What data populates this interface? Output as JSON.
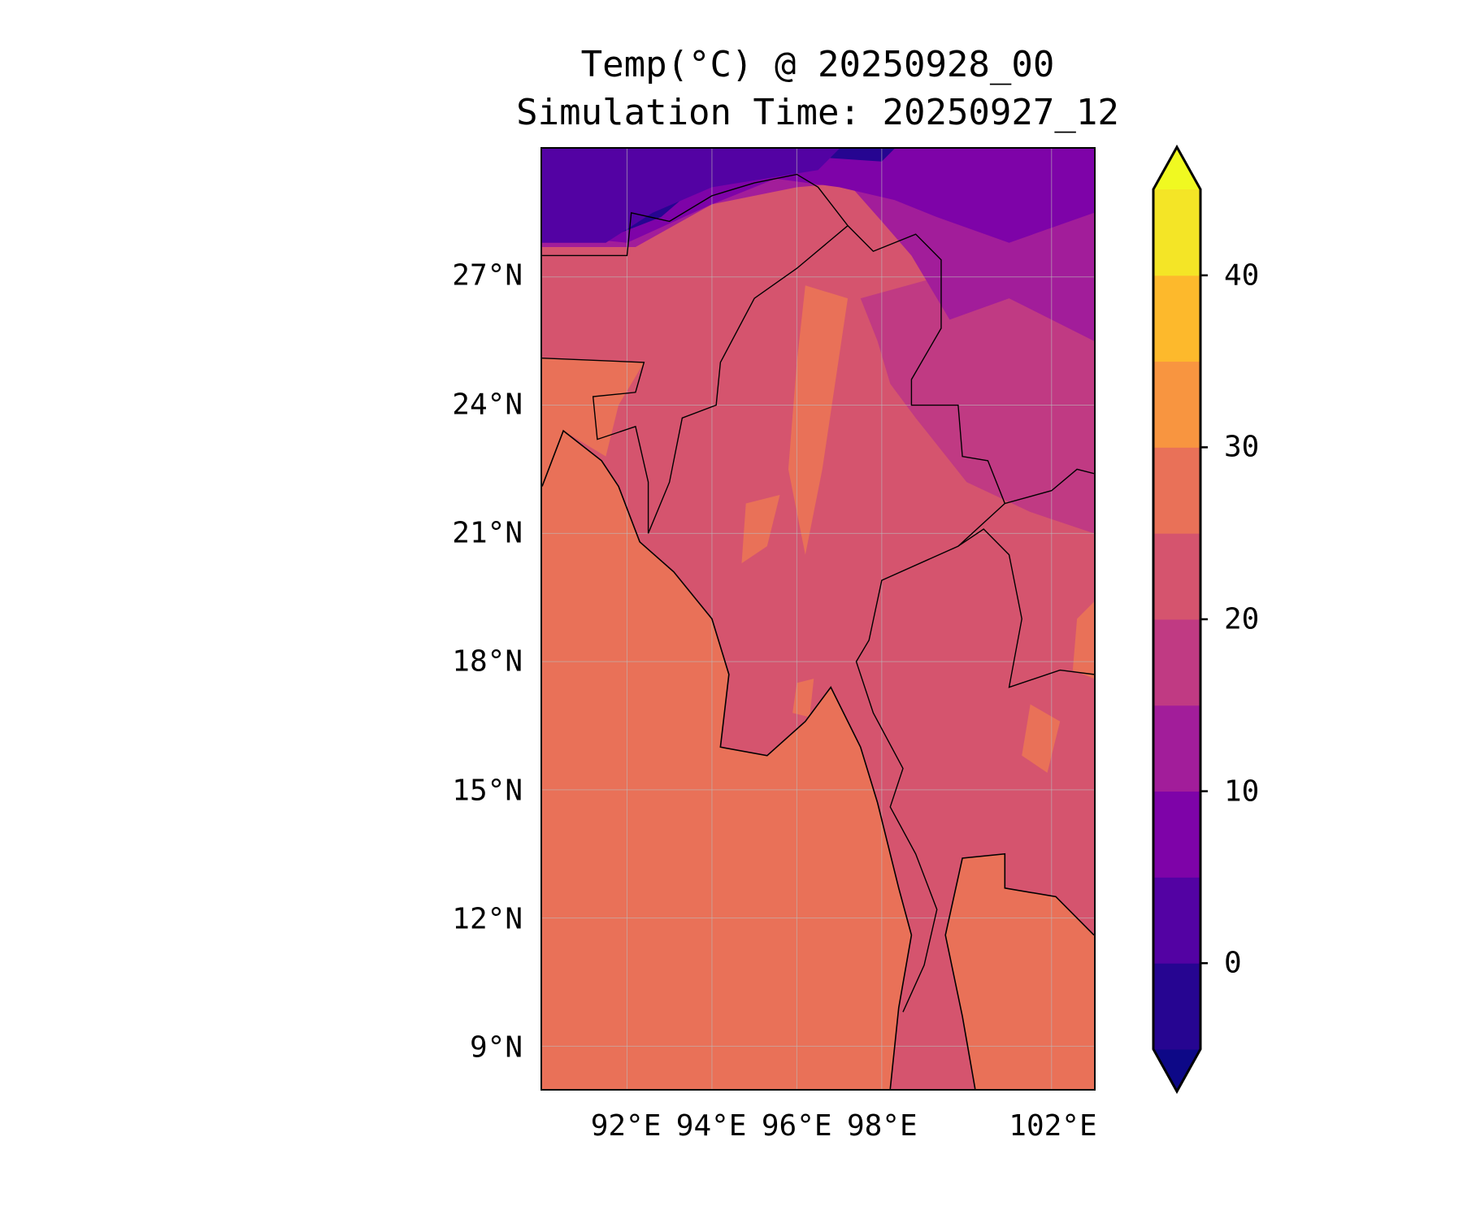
{
  "chart_data": {
    "type": "heatmap",
    "title": "Temp(°C) @ 20250928_00",
    "subtitle": "Simulation Time: 20250927_12",
    "xlabel": "",
    "ylabel": "",
    "xlim": [
      90,
      103
    ],
    "ylim": [
      8,
      30
    ],
    "x_ticks": [
      {
        "value": 92,
        "label": "92°E"
      },
      {
        "value": 94,
        "label": "94°E"
      },
      {
        "value": 96,
        "label": "96°E"
      },
      {
        "value": 98,
        "label": "98°E"
      },
      {
        "value": 102,
        "label": "102°E"
      }
    ],
    "y_ticks": [
      {
        "value": 27,
        "label": "27°N"
      },
      {
        "value": 24,
        "label": "24°N"
      },
      {
        "value": 21,
        "label": "21°N"
      },
      {
        "value": 18,
        "label": "18°N"
      },
      {
        "value": 15,
        "label": "15°N"
      },
      {
        "value": 12,
        "label": "12°N"
      },
      {
        "value": 9,
        "label": "9°N"
      }
    ],
    "grid": true,
    "colorbar": {
      "levels": [
        -5,
        0,
        5,
        10,
        15,
        20,
        25,
        30,
        35,
        40,
        45
      ],
      "colors": [
        "#260591",
        "#5302a3",
        "#7e03a8",
        "#a21d9a",
        "#c03a83",
        "#d5546e",
        "#e97158",
        "#f89540",
        "#fdb92c",
        "#f4e526"
      ],
      "under_color": "#0d0887",
      "over_color": "#f0f921",
      "extend": "both",
      "ticks": [
        {
          "value": 0,
          "label": "0"
        },
        {
          "value": 10,
          "label": "10"
        },
        {
          "value": 20,
          "label": "20"
        },
        {
          "value": 30,
          "label": "30"
        },
        {
          "value": 40,
          "label": "40"
        }
      ]
    },
    "field_summary": {
      "sea": "25-30",
      "lowland_myanmar_thailand": "20-25",
      "central_dry_zone_patches": "25-30",
      "northern_mountains": "5-15",
      "tibetan_plateau_edge": "-5-5"
    }
  }
}
